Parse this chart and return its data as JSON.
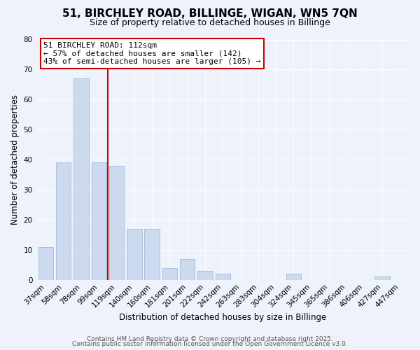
{
  "title": "51, BIRCHLEY ROAD, BILLINGE, WIGAN, WN5 7QN",
  "subtitle": "Size of property relative to detached houses in Billinge",
  "xlabel": "Distribution of detached houses by size in Billinge",
  "ylabel": "Number of detached properties",
  "bar_labels": [
    "37sqm",
    "58sqm",
    "78sqm",
    "99sqm",
    "119sqm",
    "140sqm",
    "160sqm",
    "181sqm",
    "201sqm",
    "222sqm",
    "242sqm",
    "263sqm",
    "283sqm",
    "304sqm",
    "324sqm",
    "345sqm",
    "365sqm",
    "386sqm",
    "406sqm",
    "427sqm",
    "447sqm"
  ],
  "bar_values": [
    11,
    39,
    67,
    39,
    38,
    17,
    17,
    4,
    7,
    3,
    2,
    0,
    0,
    0,
    2,
    0,
    0,
    0,
    0,
    1,
    0
  ],
  "bar_color": "#ccd9ee",
  "bar_edge_color": "#a8c0de",
  "vline_color": "#cc0000",
  "vline_x": 3.5,
  "annotation_text": "51 BIRCHLEY ROAD: 112sqm\n← 57% of detached houses are smaller (142)\n43% of semi-detached houses are larger (105) →",
  "annotation_box_color": "#ffffff",
  "annotation_box_edge": "#cc0000",
  "ylim": [
    0,
    80
  ],
  "yticks": [
    0,
    10,
    20,
    30,
    40,
    50,
    60,
    70,
    80
  ],
  "background_color": "#eef2fb",
  "grid_color": "#ffffff",
  "footer_line1": "Contains HM Land Registry data © Crown copyright and database right 2025.",
  "footer_line2": "Contains public sector information licensed under the Open Government Licence v3.0.",
  "title_fontsize": 11,
  "subtitle_fontsize": 9,
  "axis_label_fontsize": 8.5,
  "tick_fontsize": 7.5,
  "annotation_fontsize": 8,
  "footer_fontsize": 6.5
}
